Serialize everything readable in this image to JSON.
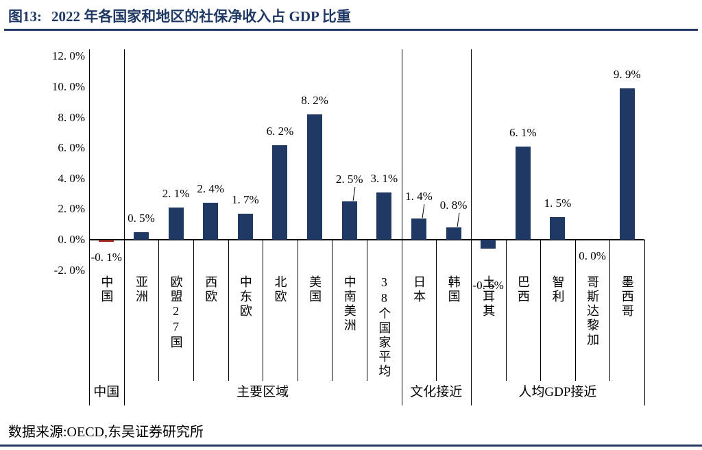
{
  "header": {
    "figure_label": "图13:",
    "title": "2022 年各国家和地区的社保净收入占 GDP 比重"
  },
  "footer": {
    "source": "数据来源:OECD,东吴证券研究所"
  },
  "colors": {
    "navy": "#1F3864",
    "bar": "#1F3864",
    "china_bar": "#96231A",
    "axis": "#000000"
  },
  "chart_data": {
    "type": "bar",
    "title": "2022 年各国家和地区的社保净收入占 GDP 比重",
    "unit": "%",
    "ylim": [
      -2,
      12
    ],
    "ytick_step": 2,
    "grid": "off",
    "legend": "none",
    "ytick_labels": [
      "12. 0%",
      "10. 0%",
      "8. 0%",
      "6. 0%",
      "4. 0%",
      "2. 0%",
      "0. 0%",
      "-2. 0%"
    ],
    "groups": [
      {
        "label": "中国",
        "categories": [
          {
            "label": "中国",
            "value": -0.1,
            "value_label": "-0. 1%",
            "color": "red"
          }
        ]
      },
      {
        "label": "主要区域",
        "categories": [
          {
            "label": "亚洲",
            "value": 0.5,
            "value_label": "0. 5%"
          },
          {
            "label": "欧盟27国",
            "value": 2.1,
            "value_label": "2. 1%"
          },
          {
            "label": "西欧",
            "value": 2.4,
            "value_label": "2. 4%"
          },
          {
            "label": "中东欧",
            "value": 1.7,
            "value_label": "1. 7%"
          },
          {
            "label": "北欧",
            "value": 6.2,
            "value_label": "6. 2%"
          },
          {
            "label": "美国",
            "value": 8.2,
            "value_label": "8. 2%"
          },
          {
            "label": "中南美洲",
            "value": 2.5,
            "value_label": "2. 5%",
            "leader": true
          },
          {
            "label": "38个国家平均",
            "value": 3.1,
            "value_label": "3. 1%"
          }
        ]
      },
      {
        "label": "文化接近",
        "categories": [
          {
            "label": "日本",
            "value": 1.4,
            "value_label": "1. 4%",
            "leader": true
          },
          {
            "label": "韩国",
            "value": 0.8,
            "value_label": "0. 8%",
            "leader": true
          }
        ]
      },
      {
        "label": "人均GDP接近",
        "categories": [
          {
            "label": "土耳其",
            "value": -0.6,
            "value_label": "-0. 6%",
            "label_drop": 30
          },
          {
            "label": "巴西",
            "value": 6.1,
            "value_label": "6. 1%"
          },
          {
            "label": "智利",
            "value": 1.5,
            "value_label": "1. 5%"
          },
          {
            "label": "哥斯达黎加",
            "value": 0.0,
            "value_label": "0. 0%"
          },
          {
            "label": "墨西哥",
            "value": 9.9,
            "value_label": "9. 9%"
          }
        ]
      }
    ]
  }
}
